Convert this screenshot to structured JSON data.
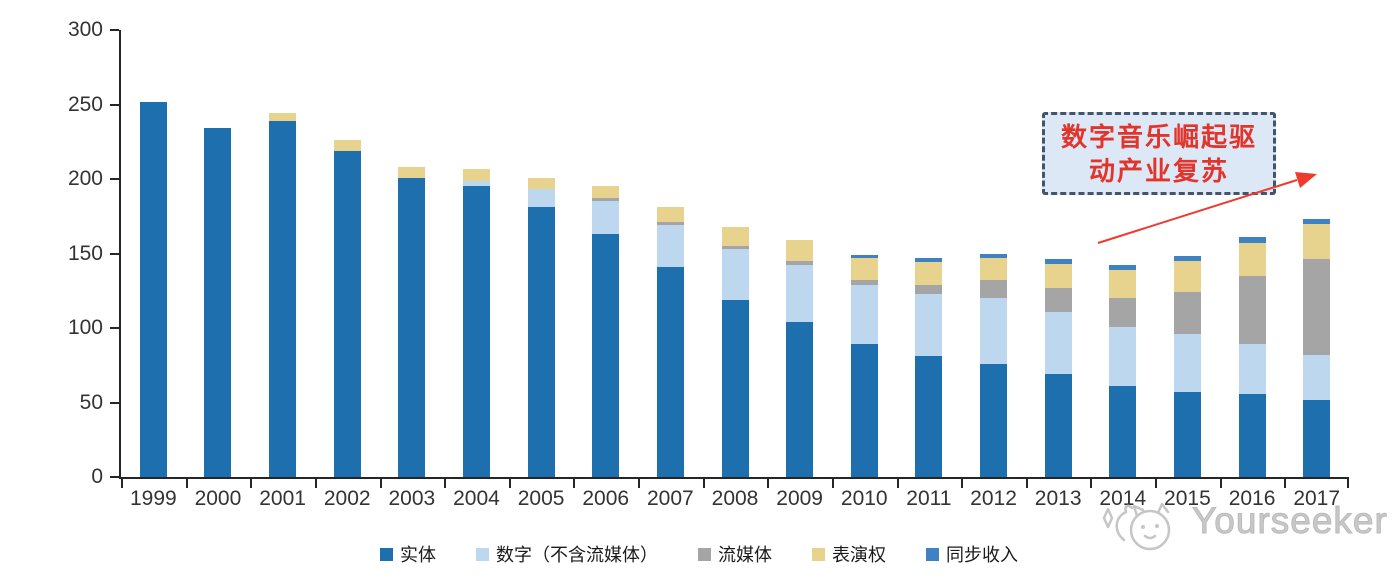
{
  "chart_data": {
    "type": "bar",
    "stacked": true,
    "title": "",
    "xlabel": "",
    "ylabel": "",
    "grid": false,
    "legend_position": "bottom",
    "ylim": [
      0,
      300
    ],
    "ytick_step": 50,
    "categories": [
      "1999",
      "2000",
      "2001",
      "2002",
      "2003",
      "2004",
      "2005",
      "2006",
      "2007",
      "2008",
      "2009",
      "2010",
      "2011",
      "2012",
      "2013",
      "2014",
      "2015",
      "2016",
      "2017"
    ],
    "series": [
      {
        "key": "physical",
        "name": "实体",
        "color": "#1E6FAE",
        "values": [
          252,
          234,
          239,
          219,
          201,
          195,
          181,
          163,
          141,
          119,
          104,
          89,
          81,
          76,
          69,
          61,
          57,
          56,
          52
        ]
      },
      {
        "key": "digital-ex-streaming",
        "name": "数字（不含流媒体）",
        "color": "#BDD7EE",
        "values": [
          0,
          0,
          0,
          0,
          0,
          4,
          12,
          22,
          28,
          34,
          38,
          40,
          42,
          44,
          42,
          40,
          39,
          33,
          30
        ]
      },
      {
        "key": "streaming",
        "name": "流媒体",
        "color": "#A5A5A5",
        "values": [
          0,
          0,
          0,
          0,
          0,
          0,
          0,
          2,
          2,
          2,
          3,
          3,
          6,
          12,
          16,
          19,
          28,
          46,
          64
        ]
      },
      {
        "key": "performance-rights",
        "name": "表演权",
        "color": "#E7D28E",
        "values": [
          0,
          0,
          5,
          7,
          7,
          8,
          8,
          8,
          10,
          13,
          14,
          15,
          15,
          15,
          16,
          19,
          21,
          22,
          24
        ]
      },
      {
        "key": "sync",
        "name": "同步收入",
        "color": "#3E82C4",
        "values": [
          0,
          0,
          0,
          0,
          0,
          0,
          0,
          0,
          0,
          0,
          0,
          2,
          3,
          3,
          3,
          3,
          3,
          4,
          3
        ]
      }
    ]
  },
  "annotation": {
    "line1": "数字音乐崛起驱",
    "line2": "动产业复苏",
    "full_text": "数字音乐崛起驱动产业复苏",
    "text_color": "#E2342B",
    "fill_color": "#DCE8F6",
    "border_color": "#44546A",
    "arrow_color": "#EE3B2E"
  },
  "watermark": {
    "text": "Yourseeker",
    "color": "#C6C6C6"
  },
  "axis": {
    "color": "#262626",
    "label_color": "#333333"
  }
}
